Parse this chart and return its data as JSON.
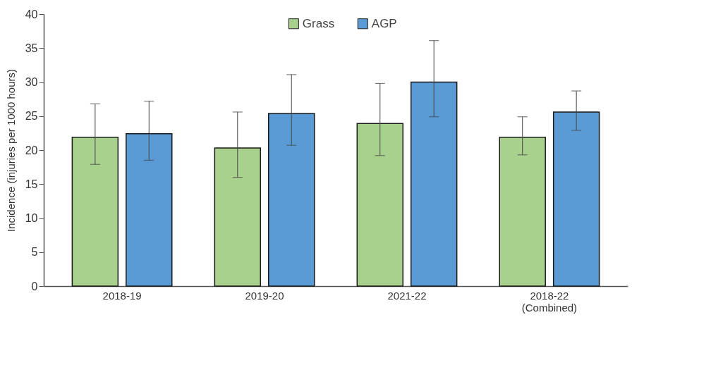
{
  "chart_data": {
    "type": "bar",
    "ylabel": "Incidence (injuries per 1000 hours)",
    "categories": [
      "2018-19",
      "2019-20",
      "2021-22",
      "2018-22\n(Combined)"
    ],
    "series": [
      {
        "name": "Grass",
        "color": "#a9d18e",
        "values": [
          21.9,
          20.3,
          23.9,
          21.9
        ],
        "errors": [
          [
            17.9,
            26.8
          ],
          [
            16.0,
            25.6
          ],
          [
            19.2,
            29.8
          ],
          [
            19.3,
            24.9
          ]
        ]
      },
      {
        "name": "AGP",
        "color": "#5b9bd5",
        "values": [
          22.4,
          25.4,
          30.0,
          25.6
        ],
        "errors": [
          [
            18.5,
            27.2
          ],
          [
            20.7,
            31.1
          ],
          [
            24.9,
            36.1
          ],
          [
            22.9,
            28.7
          ]
        ]
      }
    ],
    "ylim": [
      0,
      40
    ],
    "yticks": [
      0,
      5,
      10,
      15,
      20,
      25,
      30,
      35,
      40
    ],
    "grid": false,
    "legend": "top"
  }
}
